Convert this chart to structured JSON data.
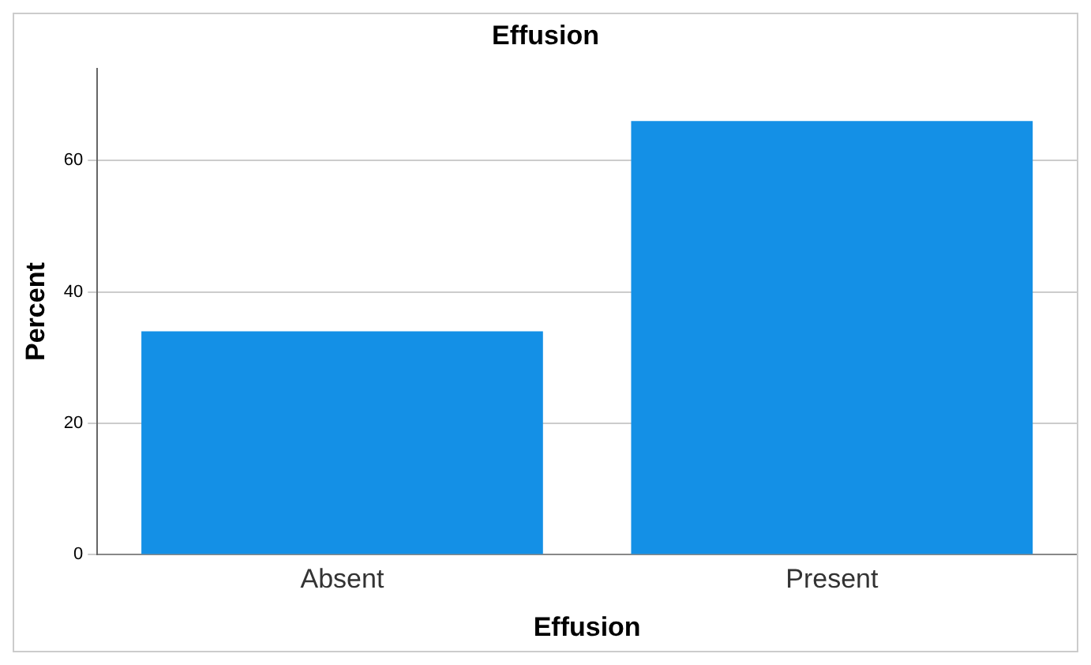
{
  "chart_data": {
    "type": "bar",
    "title": "Effusion",
    "xlabel": "Effusion",
    "ylabel": "Percent",
    "categories": [
      "Absent",
      "Present"
    ],
    "values": [
      34,
      66
    ],
    "color": "#1490e6",
    "ylim": [
      0,
      74
    ],
    "yticks": [
      0,
      20,
      40,
      60
    ],
    "grid": "y"
  }
}
